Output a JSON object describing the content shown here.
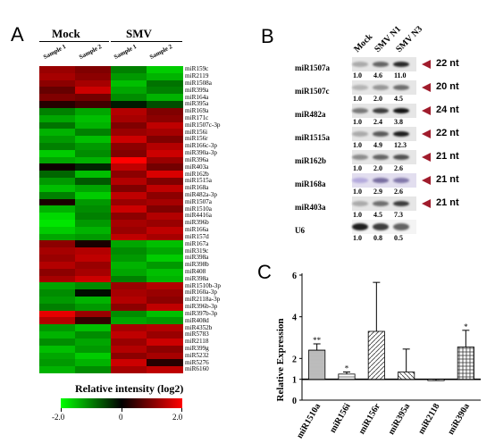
{
  "panel_a": {
    "letter": "A",
    "groups": [
      "Mock",
      "SMV"
    ],
    "samples": [
      "Sample 1",
      "Sample 2",
      "Sample 1",
      "Sample 2"
    ],
    "rows": [
      {
        "name": "miR159c",
        "v": [
          1.2,
          1.0,
          -1.0,
          -1.6
        ]
      },
      {
        "name": "miR2119",
        "v": [
          1.3,
          1.1,
          -1.2,
          -1.4
        ]
      },
      {
        "name": "miR1508a",
        "v": [
          1.1,
          1.3,
          -1.5,
          -0.9
        ]
      },
      {
        "name": "miR399a",
        "v": [
          0.8,
          1.6,
          -1.3,
          -1.0
        ]
      },
      {
        "name": "miR164a",
        "v": [
          1.0,
          0.9,
          -1.1,
          -1.4
        ]
      },
      {
        "name": "miR395a",
        "v": [
          0.3,
          0.5,
          -0.2,
          -0.6
        ]
      },
      {
        "name": "miR169a",
        "v": [
          -1.0,
          -1.3,
          1.4,
          1.0
        ]
      },
      {
        "name": "miR171c",
        "v": [
          -1.3,
          -1.5,
          1.3,
          1.1
        ]
      },
      {
        "name": "miR1507c-3p",
        "v": [
          -0.9,
          -1.4,
          1.0,
          1.5
        ]
      },
      {
        "name": "miR156i",
        "v": [
          -1.4,
          -1.0,
          1.2,
          1.3
        ]
      },
      {
        "name": "miR156r",
        "v": [
          -1.2,
          -1.5,
          1.6,
          1.0
        ]
      },
      {
        "name": "miR166c-3p",
        "v": [
          -1.0,
          -1.2,
          1.1,
          1.4
        ]
      },
      {
        "name": "miR390a-3p",
        "v": [
          -1.6,
          -1.1,
          1.0,
          1.6
        ]
      },
      {
        "name": "miR396a",
        "v": [
          -1.3,
          -1.4,
          2.0,
          1.2
        ]
      },
      {
        "name": "miR403a",
        "v": [
          0.1,
          -0.3,
          1.5,
          0.9
        ]
      },
      {
        "name": "miR162b",
        "v": [
          -0.8,
          -1.5,
          1.1,
          1.7
        ]
      },
      {
        "name": "miR1515a",
        "v": [
          -1.2,
          -0.7,
          1.4,
          1.0
        ]
      },
      {
        "name": "miR168a",
        "v": [
          -1.5,
          -1.3,
          1.0,
          1.5
        ]
      },
      {
        "name": "miR482a-3p",
        "v": [
          -1.0,
          -1.6,
          1.5,
          1.1
        ]
      },
      {
        "name": "miR1507a",
        "v": [
          0.2,
          -1.2,
          1.2,
          1.3
        ]
      },
      {
        "name": "miR1510a",
        "v": [
          -1.4,
          -1.1,
          1.6,
          1.0
        ]
      },
      {
        "name": "miR4416a",
        "v": [
          -1.7,
          -1.0,
          1.1,
          1.4
        ]
      },
      {
        "name": "miR396b",
        "v": [
          -1.8,
          -1.2,
          1.3,
          1.2
        ]
      },
      {
        "name": "miR166a",
        "v": [
          -1.6,
          -1.4,
          1.2,
          1.5
        ]
      },
      {
        "name": "miR157d",
        "v": [
          -1.3,
          -1.2,
          1.5,
          1.3
        ]
      },
      {
        "name": "miR167a",
        "v": [
          1.1,
          0.2,
          -1.3,
          -1.5
        ]
      },
      {
        "name": "miR319c",
        "v": [
          1.3,
          1.4,
          -1.1,
          -1.3
        ]
      },
      {
        "name": "miR398a",
        "v": [
          1.2,
          1.5,
          -1.2,
          -1.6
        ]
      },
      {
        "name": "miR398b",
        "v": [
          1.4,
          1.2,
          -1.4,
          -1.2
        ]
      },
      {
        "name": "miR408",
        "v": [
          1.1,
          1.3,
          -1.3,
          -1.5
        ]
      },
      {
        "name": "miR398a",
        "v": [
          1.3,
          1.6,
          -1.0,
          -1.4
        ]
      },
      {
        "name": "miR1510b-3p",
        "v": [
          -1.3,
          -1.1,
          1.2,
          1.4
        ]
      },
      {
        "name": "miR160a-3p",
        "v": [
          -1.1,
          -0.1,
          1.3,
          1.2
        ]
      },
      {
        "name": "miR2118a-3p",
        "v": [
          -1.2,
          -1.4,
          1.4,
          1.1
        ]
      },
      {
        "name": "miR396b-3p",
        "v": [
          -1.0,
          -1.2,
          1.1,
          1.5
        ]
      },
      {
        "name": "miR397b-3p",
        "v": [
          1.8,
          1.2,
          -1.1,
          -1.5
        ]
      },
      {
        "name": "miR408d",
        "v": [
          1.4,
          0.4,
          -1.3,
          -1.2
        ]
      },
      {
        "name": "miR4352b",
        "v": [
          -1.2,
          -1.5,
          1.3,
          1.4
        ]
      },
      {
        "name": "miR5783",
        "v": [
          -1.4,
          -1.1,
          1.5,
          1.2
        ]
      },
      {
        "name": "miR2118",
        "v": [
          -1.1,
          -1.3,
          1.2,
          1.6
        ]
      },
      {
        "name": "miR399g",
        "v": [
          -1.5,
          -1.2,
          1.4,
          1.1
        ]
      },
      {
        "name": "miR5232",
        "v": [
          -1.3,
          -1.6,
          1.1,
          1.3
        ]
      },
      {
        "name": "miR5276",
        "v": [
          -1.2,
          -1.4,
          1.6,
          0.3
        ]
      },
      {
        "name": "miR6160",
        "v": [
          -1.4,
          -1.1,
          1.3,
          1.5
        ]
      }
    ],
    "colorbar": {
      "title": "Relative intensity (log2)",
      "min_label": "-2.0",
      "mid_label": "0",
      "max_label": "2.0",
      "low_color": "#00ff00",
      "mid_color": "#000000",
      "high_color": "#ff0000"
    }
  },
  "panel_b": {
    "letter": "B",
    "lanes": [
      "Mock",
      "SMV N1",
      "SMV N3"
    ],
    "blots": [
      {
        "name": "miR1507a",
        "values": [
          "1.0",
          "4.6",
          "11.0"
        ],
        "size": "22 nt",
        "intensity": [
          0.2,
          0.55,
          0.85
        ]
      },
      {
        "name": "miR1507c",
        "values": [
          "1.0",
          "2.0",
          "4.5"
        ],
        "size": "20 nt",
        "intensity": [
          0.15,
          0.3,
          0.5
        ]
      },
      {
        "name": "miR482a",
        "values": [
          "1.0",
          "2.4",
          "3.8"
        ],
        "size": "24 nt",
        "intensity": [
          0.45,
          0.75,
          0.95
        ]
      },
      {
        "name": "miR1515a",
        "values": [
          "1.0",
          "4.9",
          "12.3"
        ],
        "size": "22 nt",
        "intensity": [
          0.2,
          0.6,
          0.9
        ]
      },
      {
        "name": "miR162b",
        "values": [
          "1.0",
          "2.0",
          "2.6"
        ],
        "size": "21 nt",
        "intensity": [
          0.35,
          0.55,
          0.65
        ]
      },
      {
        "name": "miR168a",
        "values": [
          "1.0",
          "2.9",
          "2.6"
        ],
        "size": "21 nt",
        "intensity": [
          0.25,
          0.55,
          0.5
        ]
      },
      {
        "name": "miR403a",
        "values": [
          "1.0",
          "4.5",
          "7.3"
        ],
        "size": "21 nt",
        "intensity": [
          0.2,
          0.5,
          0.75
        ]
      }
    ],
    "loading": {
      "name": "U6",
      "values": [
        "1.0",
        "0.8",
        "0.5"
      ]
    },
    "arrow_color": "#a01c2c"
  },
  "panel_c": {
    "letter": "C",
    "chart_data": {
      "type": "bar",
      "categories": [
        "miR1510a",
        "miR156i",
        "miR156r",
        "miR395a",
        "miR2118",
        "miR390a"
      ],
      "values": [
        2.4,
        1.25,
        3.3,
        1.35,
        0.95,
        2.55
      ],
      "errors": [
        0.3,
        0.1,
        2.35,
        1.1,
        0.05,
        0.8
      ],
      "significance": [
        "**",
        "*",
        "",
        "",
        "",
        "*"
      ],
      "ylabel": "Relative Expression",
      "ylim": [
        0,
        6
      ],
      "yticks": [
        "0",
        "1",
        "2",
        "4",
        "6"
      ],
      "baseline": 1
    }
  }
}
